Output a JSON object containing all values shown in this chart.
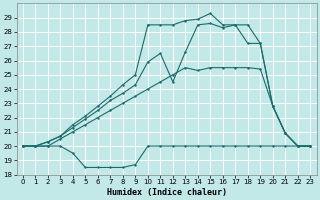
{
  "xlabel": "Humidex (Indice chaleur)",
  "background_color": "#c2e8e8",
  "grid_color": "#ffffff",
  "line_color": "#1a6b6b",
  "xlim": [
    -0.5,
    23.5
  ],
  "ylim": [
    18,
    30
  ],
  "yticks": [
    18,
    19,
    20,
    21,
    22,
    23,
    24,
    25,
    26,
    27,
    28,
    29
  ],
  "xticks": [
    0,
    1,
    2,
    3,
    4,
    5,
    6,
    7,
    8,
    9,
    10,
    11,
    12,
    13,
    14,
    15,
    16,
    17,
    18,
    19,
    20,
    21,
    22,
    23
  ],
  "line1_x": [
    0,
    1,
    2,
    3,
    4,
    5,
    6,
    7,
    8,
    9,
    10,
    11,
    12,
    13,
    14,
    15,
    16,
    17,
    18,
    19,
    20,
    21,
    22,
    23
  ],
  "line1_y": [
    20.0,
    20.0,
    20.0,
    20.0,
    19.5,
    18.5,
    18.5,
    18.5,
    18.5,
    18.7,
    20.0,
    20.0,
    20.0,
    20.0,
    20.0,
    20.0,
    20.0,
    20.0,
    20.0,
    20.0,
    20.0,
    20.0,
    20.0,
    20.0
  ],
  "line2_x": [
    0,
    1,
    2,
    3,
    4,
    5,
    6,
    7,
    8,
    9,
    10,
    11,
    12,
    13,
    14,
    15,
    16,
    17,
    18,
    19,
    20,
    21,
    22,
    23
  ],
  "line2_y": [
    20.0,
    20.0,
    20.0,
    20.5,
    21.0,
    21.5,
    22.0,
    22.5,
    23.0,
    23.5,
    24.0,
    24.5,
    25.0,
    25.5,
    25.3,
    25.5,
    25.5,
    25.5,
    25.5,
    25.4,
    22.8,
    20.9,
    20.0,
    20.0
  ],
  "line3_x": [
    0,
    1,
    2,
    3,
    4,
    5,
    6,
    7,
    8,
    9,
    10,
    11,
    12,
    13,
    14,
    15,
    16,
    17,
    18,
    19,
    20,
    21,
    22,
    23
  ],
  "line3_y": [
    20.0,
    20.0,
    20.3,
    20.7,
    21.3,
    21.9,
    22.5,
    23.2,
    23.7,
    24.3,
    25.9,
    26.5,
    24.5,
    26.6,
    28.5,
    28.6,
    28.3,
    28.5,
    27.2,
    27.2,
    22.8,
    20.9,
    20.0,
    20.0
  ],
  "line4_x": [
    0,
    1,
    2,
    3,
    4,
    5,
    6,
    7,
    8,
    9,
    10,
    11,
    12,
    13,
    14,
    15,
    16,
    17,
    18,
    19,
    20,
    21,
    22,
    23
  ],
  "line4_y": [
    20.0,
    20.0,
    20.3,
    20.7,
    21.5,
    22.1,
    22.8,
    23.5,
    24.3,
    25.0,
    28.5,
    28.5,
    28.5,
    28.8,
    28.9,
    29.3,
    28.5,
    28.5,
    28.5,
    27.2,
    22.8,
    20.9,
    20.0,
    20.0
  ]
}
